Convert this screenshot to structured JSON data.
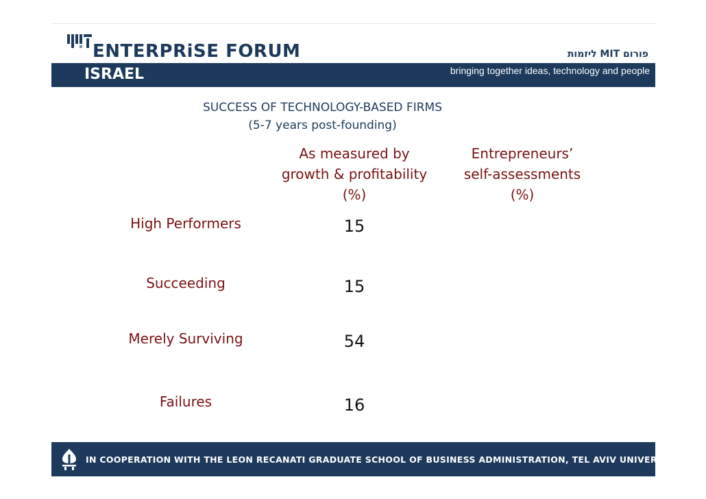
{
  "header": {
    "logo_icon": "mit-logo-icon",
    "forum_name": "ENTERPRiSE FORUM",
    "region": "ISRAEL",
    "hebrew_name": "פורום MIT ליזמות",
    "tagline": "bringing together ideas, technology and people",
    "brand_color": "#1d3a5c"
  },
  "title": {
    "line1": "SUCCESS OF TECHNOLOGY-BASED FIRMS",
    "line2": "(5-7 years post-founding)"
  },
  "table": {
    "columns": [
      {
        "line1": "As measured by",
        "line2": "growth & profitability",
        "line3": "(%)"
      },
      {
        "line1": "Entrepreneurs’",
        "line2": "self-assessments",
        "line3": "(%)"
      }
    ],
    "rows": [
      {
        "label": "High Performers",
        "value": "15"
      },
      {
        "label": "Succeeding",
        "value": "15"
      },
      {
        "label": "Merely Surviving",
        "value": "54"
      },
      {
        "label": "Failures",
        "value": "16"
      }
    ],
    "label_color": "#7a1111"
  },
  "footer": {
    "logo_icon": "tel-aviv-university-logo-icon",
    "text": "IN COOPERATION WITH THE LEON RECANATI GRADUATE SCHOOL OF BUSINESS ADMINISTRATION, TEL AVIV UNIVERSITY"
  }
}
